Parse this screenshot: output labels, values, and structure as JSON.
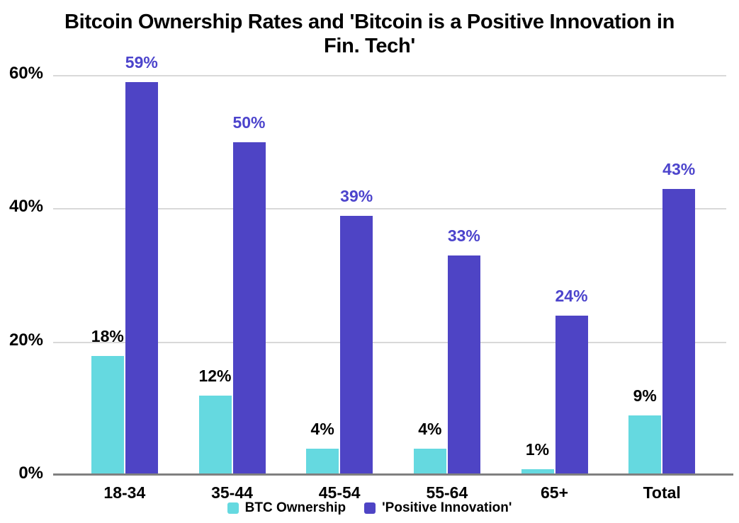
{
  "title": {
    "line1": "Bitcoin Ownership Rates and 'Bitcoin is a Positive Innovation in",
    "line2": "Fin. Tech'"
  },
  "chart_data": {
    "type": "bar",
    "title": "Bitcoin Ownership Rates and 'Bitcoin is a Positive Innovation in Fin. Tech'",
    "categories": [
      "18-34",
      "35-44",
      "45-54",
      "55-64",
      "65+",
      "Total"
    ],
    "series": [
      {
        "name": "BTC Ownership",
        "color": "#65d9e0",
        "label_color": "#000000",
        "values": [
          18,
          12,
          4,
          4,
          1,
          9
        ]
      },
      {
        "name": "'Positive Innovation'",
        "color": "#4e44c5",
        "label_color": "#4c44cc",
        "values": [
          59,
          50,
          39,
          33,
          24,
          43
        ]
      }
    ],
    "value_suffix": "%",
    "xlabel": "",
    "ylabel": "",
    "ylim": [
      0,
      60
    ],
    "yticks": [
      {
        "value": 0,
        "label": "0%"
      },
      {
        "value": 20,
        "label": "20%"
      },
      {
        "value": 40,
        "label": "40%"
      },
      {
        "value": 60,
        "label": "60%"
      }
    ],
    "grid": true,
    "legend_position": "bottom"
  },
  "style": {
    "background": "#ffffff",
    "gridline_color": "#d9d9d9",
    "axis_color": "#808080",
    "text_color": "#000000"
  }
}
